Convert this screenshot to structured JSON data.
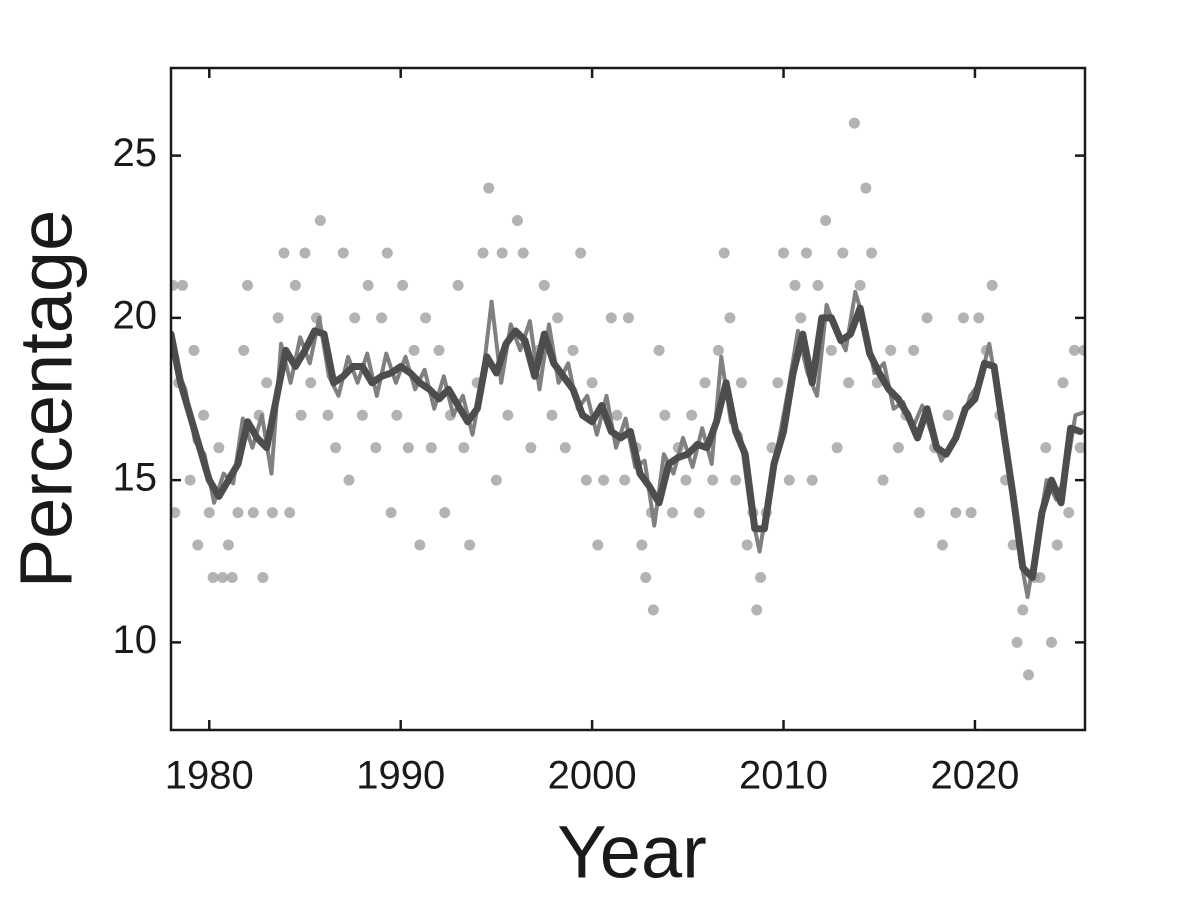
{
  "chart_data": {
    "type": "line",
    "xlabel": "Year",
    "ylabel": "Percentage",
    "xlim": [
      1978,
      2025.75
    ],
    "ylim": [
      7.3,
      27.7
    ],
    "xticks": [
      1980,
      1990,
      2000,
      2010,
      2020
    ],
    "yticks": [
      10,
      15,
      20,
      25
    ],
    "series": [
      {
        "type": "scatter",
        "color": "#9a9a9a",
        "x": [
          1978.1,
          1978.2,
          1978.4,
          1978.6,
          1979.0,
          1979.2,
          1979.4,
          1979.7,
          1980.0,
          1980.2,
          1980.5,
          1980.7,
          1981.0,
          1981.2,
          1981.5,
          1981.8,
          1982.0,
          1982.3,
          1982.6,
          1982.8,
          1983.0,
          1983.3,
          1983.6,
          1983.9,
          1984.2,
          1984.5,
          1984.8,
          1985.0,
          1985.3,
          1985.6,
          1985.8,
          1986.2,
          1986.6,
          1987.0,
          1987.3,
          1987.6,
          1988.0,
          1988.3,
          1988.7,
          1989.0,
          1989.3,
          1989.5,
          1989.8,
          1990.1,
          1990.4,
          1990.7,
          1991.0,
          1991.3,
          1991.6,
          1992.0,
          1992.3,
          1992.6,
          1993.0,
          1993.3,
          1993.6,
          1994.0,
          1994.3,
          1994.6,
          1995.0,
          1995.3,
          1995.6,
          1996.1,
          1996.4,
          1996.8,
          1997.2,
          1997.5,
          1997.9,
          1998.2,
          1998.6,
          1999.0,
          1999.4,
          1999.7,
          2000.0,
          2000.3,
          2000.6,
          2001.0,
          2001.3,
          2001.7,
          2001.9,
          2002.3,
          2002.6,
          2002.8,
          2003.1,
          2003.2,
          2003.5,
          2003.8,
          2004.2,
          2004.5,
          2004.9,
          2005.2,
          2005.6,
          2005.9,
          2006.3,
          2006.6,
          2006.9,
          2007.2,
          2007.5,
          2007.8,
          2008.1,
          2008.4,
          2008.6,
          2008.8,
          2009.1,
          2009.4,
          2009.7,
          2010.0,
          2010.3,
          2010.6,
          2010.9,
          2011.2,
          2011.5,
          2011.8,
          2012.2,
          2012.5,
          2012.8,
          2013.1,
          2013.4,
          2013.7,
          2014.0,
          2014.3,
          2014.6,
          2014.9,
          2015.2,
          2015.6,
          2016.0,
          2016.4,
          2016.8,
          2017.1,
          2017.5,
          2017.9,
          2018.3,
          2018.6,
          2019.0,
          2019.4,
          2019.8,
          2020.2,
          2020.6,
          2020.9,
          2021.3,
          2021.6,
          2022.0,
          2022.2,
          2022.5,
          2022.8,
          2023.1,
          2023.4,
          2023.7,
          2024.0,
          2024.3,
          2024.6,
          2024.9,
          2025.2,
          2025.5,
          2025.7
        ],
        "values": [
          21,
          14,
          18,
          21,
          15,
          19,
          13,
          17,
          14,
          12,
          16,
          12,
          13,
          12,
          14,
          19,
          21,
          14,
          17,
          12,
          18,
          14,
          20,
          22,
          14,
          21,
          17,
          22,
          18,
          20,
          23,
          17,
          16,
          22,
          15,
          20,
          17,
          21,
          16,
          20,
          22,
          14,
          17,
          21,
          16,
          19,
          13,
          20,
          16,
          19,
          14,
          17,
          21,
          16,
          13,
          18,
          22,
          24,
          15,
          22,
          17,
          23,
          22,
          16,
          19,
          21,
          17,
          20,
          16,
          19,
          22,
          15,
          18,
          13,
          15,
          20,
          17,
          15,
          20,
          16,
          13,
          12,
          14,
          11,
          19,
          17,
          14,
          16,
          15,
          17,
          14,
          18,
          15,
          19,
          22,
          20,
          15,
          18,
          13,
          14,
          11,
          12,
          14,
          16,
          18,
          22,
          15,
          21,
          20,
          22,
          15,
          21,
          23,
          19,
          16,
          22,
          18,
          26,
          21,
          24,
          22,
          18,
          15,
          19,
          16,
          17,
          19,
          14,
          20,
          16,
          13,
          17,
          14,
          20,
          14,
          20,
          19,
          21,
          17,
          15,
          13,
          10,
          11,
          9,
          12,
          12,
          16,
          10,
          13,
          18,
          14,
          19,
          16,
          19
        ]
      },
      {
        "type": "line",
        "color": "#808080",
        "x": [
          1978.25,
          1978.75,
          1979.25,
          1979.75,
          1980.25,
          1980.75,
          1981.25,
          1981.75,
          1982.25,
          1982.75,
          1983.25,
          1983.75,
          1984.25,
          1984.75,
          1985.25,
          1985.75,
          1986.25,
          1986.75,
          1987.25,
          1987.75,
          1988.25,
          1988.75,
          1989.25,
          1989.75,
          1990.25,
          1990.75,
          1991.25,
          1991.75,
          1992.25,
          1992.75,
          1993.25,
          1993.75,
          1994.25,
          1994.75,
          1995.25,
          1995.75,
          1996.25,
          1996.75,
          1997.25,
          1997.75,
          1998.25,
          1998.75,
          1999.25,
          1999.75,
          2000.25,
          2000.75,
          2001.25,
          2001.75,
          2002.25,
          2002.75,
          2003.25,
          2003.75,
          2004.25,
          2004.75,
          2005.25,
          2005.75,
          2006.25,
          2006.75,
          2007.25,
          2007.75,
          2008.25,
          2008.75,
          2009.25,
          2009.75,
          2010.25,
          2010.75,
          2011.25,
          2011.75,
          2012.25,
          2012.75,
          2013.25,
          2013.75,
          2014.25,
          2014.75,
          2015.25,
          2015.75,
          2016.25,
          2016.75,
          2017.25,
          2017.75,
          2018.25,
          2018.75,
          2019.25,
          2019.75,
          2020.25,
          2020.75,
          2021.25,
          2021.75,
          2022.25,
          2022.75,
          2023.25,
          2023.75,
          2024.25,
          2024.75,
          2025.25,
          2025.75
        ],
        "values": [
          18.5,
          17.8,
          16.2,
          15.8,
          14.3,
          15.2,
          14.9,
          16.9,
          16.0,
          17.0,
          15.2,
          19.2,
          18.0,
          19.4,
          18.6,
          20.0,
          18.2,
          17.6,
          18.8,
          18.0,
          18.9,
          17.6,
          18.9,
          18.0,
          18.8,
          17.8,
          18.4,
          17.2,
          18.2,
          17.0,
          17.6,
          16.4,
          18.0,
          20.5,
          18.0,
          19.8,
          19.0,
          19.9,
          17.8,
          19.8,
          18.0,
          18.6,
          17.2,
          17.6,
          16.4,
          17.6,
          16.0,
          16.9,
          15.4,
          15.6,
          13.6,
          15.8,
          15.2,
          16.3,
          15.4,
          16.6,
          15.5,
          18.8,
          16.8,
          16.4,
          14.2,
          12.8,
          14.6,
          16.2,
          17.8,
          19.6,
          18.3,
          17.6,
          20.4,
          19.6,
          19.0,
          20.8,
          19.8,
          18.3,
          18.6,
          17.2,
          17.4,
          16.6,
          17.3,
          16.4,
          15.6,
          16.1,
          16.6,
          17.6,
          18.0,
          19.2,
          17.4,
          15.8,
          13.0,
          11.4,
          13.2,
          15.0,
          14.4,
          15.2,
          17.0,
          17.1
        ]
      },
      {
        "type": "line",
        "color": "#4d4d4d",
        "x": [
          1978.0,
          1978.5,
          1979.0,
          1979.5,
          1980.0,
          1980.5,
          1981.0,
          1981.5,
          1982.0,
          1982.5,
          1983.0,
          1983.5,
          1984.0,
          1984.5,
          1985.0,
          1985.5,
          1986.0,
          1986.5,
          1987.0,
          1987.5,
          1988.0,
          1988.5,
          1989.0,
          1989.5,
          1990.0,
          1990.5,
          1991.0,
          1991.5,
          1992.0,
          1992.5,
          1993.0,
          1993.5,
          1994.0,
          1994.5,
          1995.0,
          1995.5,
          1996.0,
          1996.5,
          1997.0,
          1997.5,
          1998.0,
          1998.5,
          1999.0,
          1999.5,
          2000.0,
          2000.5,
          2001.0,
          2001.5,
          2002.0,
          2002.5,
          2003.0,
          2003.5,
          2004.0,
          2004.5,
          2005.0,
          2005.5,
          2006.0,
          2006.5,
          2007.0,
          2007.5,
          2008.0,
          2008.5,
          2009.0,
          2009.5,
          2010.0,
          2010.5,
          2011.0,
          2011.5,
          2012.0,
          2012.5,
          2013.0,
          2013.5,
          2014.0,
          2014.5,
          2015.0,
          2015.5,
          2016.0,
          2016.5,
          2017.0,
          2017.5,
          2018.0,
          2018.5,
          2019.0,
          2019.5,
          2020.0,
          2020.5,
          2021.0,
          2021.5,
          2022.0,
          2022.5,
          2023.0,
          2023.5,
          2024.0,
          2024.5,
          2025.0,
          2025.5
        ],
        "values": [
          19.5,
          18.0,
          17.0,
          16.0,
          15.0,
          14.5,
          15.0,
          15.5,
          16.8,
          16.3,
          16.0,
          17.5,
          19.0,
          18.5,
          19.0,
          19.6,
          19.5,
          18.0,
          18.2,
          18.5,
          18.5,
          18.0,
          18.2,
          18.3,
          18.5,
          18.3,
          18.0,
          17.8,
          17.5,
          17.8,
          17.3,
          16.8,
          17.2,
          18.8,
          18.3,
          19.2,
          19.6,
          19.3,
          18.2,
          19.5,
          18.6,
          18.2,
          17.8,
          17.0,
          16.8,
          17.3,
          16.5,
          16.3,
          16.5,
          15.2,
          14.8,
          14.3,
          15.5,
          15.7,
          15.8,
          16.1,
          16.0,
          16.8,
          18.0,
          16.5,
          15.8,
          13.5,
          13.5,
          15.5,
          16.5,
          18.3,
          19.5,
          18.0,
          20.0,
          20.0,
          19.3,
          19.5,
          20.3,
          18.9,
          18.3,
          17.8,
          17.5,
          17.0,
          16.3,
          17.2,
          16.0,
          15.8,
          16.3,
          17.2,
          17.5,
          18.6,
          18.5,
          16.5,
          14.5,
          12.3,
          12.0,
          14.0,
          15.0,
          14.3,
          16.6,
          16.5
        ]
      }
    ]
  }
}
